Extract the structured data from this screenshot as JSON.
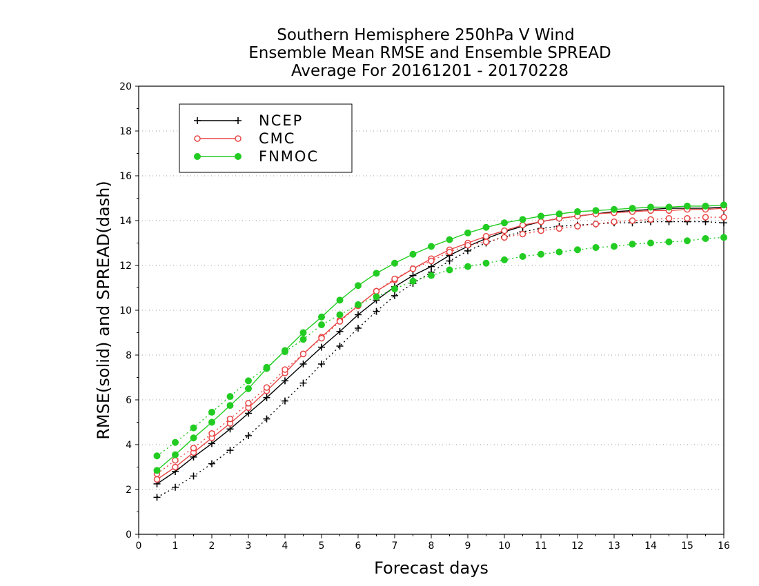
{
  "chart_data": {
    "type": "line",
    "title": [
      "Southern Hemisphere 250hPa V Wind",
      "Ensemble Mean RMSE and Ensemble SPREAD",
      "Average For 20161201 - 20170228"
    ],
    "xlabel": "Forecast days",
    "ylabel": "RMSE(solid) and SPREAD(dash)",
    "xlim": [
      0,
      16
    ],
    "ylim": [
      0,
      20
    ],
    "xticks": [
      "0",
      "1",
      "2",
      "3",
      "4",
      "5",
      "6",
      "7",
      "8",
      "9",
      "10",
      "11",
      "12",
      "13",
      "14",
      "15",
      "16"
    ],
    "yticks": [
      "0",
      "2",
      "4",
      "6",
      "8",
      "10",
      "12",
      "14",
      "16",
      "18",
      "20"
    ],
    "grid": true,
    "legend_position": "top-left",
    "x": [
      0.5,
      1,
      1.5,
      2,
      2.5,
      3,
      3.5,
      4,
      4.5,
      5,
      5.5,
      6,
      6.5,
      7,
      7.5,
      8,
      8.5,
      9,
      9.5,
      10,
      10.5,
      11,
      11.5,
      12,
      12.5,
      13,
      13.5,
      14,
      14.5,
      15,
      15.5,
      16
    ],
    "series": [
      {
        "name": "NCEP",
        "color": "#000000",
        "marker": "plus",
        "rmse": [
          2.25,
          2.8,
          3.45,
          4.05,
          4.7,
          5.4,
          6.1,
          6.85,
          7.6,
          8.35,
          9.05,
          9.8,
          10.45,
          11.05,
          11.55,
          11.95,
          12.45,
          12.85,
          13.2,
          13.5,
          13.75,
          13.95,
          14.1,
          14.2,
          14.3,
          14.4,
          14.45,
          14.5,
          14.55,
          14.55,
          14.55,
          14.6
        ],
        "spread": [
          1.65,
          2.1,
          2.6,
          3.15,
          3.75,
          4.4,
          5.15,
          5.95,
          6.75,
          7.6,
          8.4,
          9.2,
          9.95,
          10.65,
          11.2,
          11.7,
          12.2,
          12.65,
          13.0,
          13.3,
          13.5,
          13.65,
          13.75,
          13.8,
          13.85,
          13.9,
          13.9,
          13.95,
          13.95,
          13.95,
          13.95,
          13.9
        ]
      },
      {
        "name": "CMC",
        "color": "#e84646",
        "marker": "circle",
        "rmse": [
          2.45,
          3.0,
          3.65,
          4.3,
          4.95,
          5.65,
          6.4,
          7.2,
          8.05,
          8.8,
          9.55,
          10.2,
          10.85,
          11.35,
          11.85,
          12.3,
          12.7,
          13.0,
          13.3,
          13.55,
          13.8,
          13.95,
          14.1,
          14.2,
          14.3,
          14.35,
          14.4,
          14.45,
          14.45,
          14.5,
          14.5,
          14.55
        ],
        "spread": [
          2.7,
          3.3,
          3.85,
          4.5,
          5.15,
          5.85,
          6.55,
          7.35,
          8.05,
          8.75,
          9.5,
          10.2,
          10.85,
          11.4,
          11.85,
          12.2,
          12.6,
          12.9,
          13.05,
          13.25,
          13.4,
          13.55,
          13.65,
          13.75,
          13.85,
          13.95,
          14.0,
          14.05,
          14.1,
          14.1,
          14.15,
          14.15
        ]
      },
      {
        "name": "FNMOC",
        "color": "#22cc22",
        "marker": "filled-circle",
        "rmse": [
          2.85,
          3.55,
          4.3,
          5.0,
          5.75,
          6.5,
          7.4,
          8.2,
          9.0,
          9.7,
          10.45,
          11.1,
          11.65,
          12.1,
          12.5,
          12.85,
          13.15,
          13.45,
          13.7,
          13.9,
          14.05,
          14.2,
          14.3,
          14.4,
          14.45,
          14.5,
          14.55,
          14.6,
          14.6,
          14.65,
          14.65,
          14.7
        ],
        "spread": [
          3.5,
          4.1,
          4.75,
          5.45,
          6.15,
          6.85,
          7.45,
          8.15,
          8.7,
          9.35,
          9.8,
          10.25,
          10.6,
          10.95,
          11.3,
          11.55,
          11.8,
          11.95,
          12.1,
          12.25,
          12.4,
          12.5,
          12.6,
          12.7,
          12.8,
          12.85,
          12.95,
          13.0,
          13.05,
          13.1,
          13.2,
          13.25
        ]
      }
    ]
  }
}
